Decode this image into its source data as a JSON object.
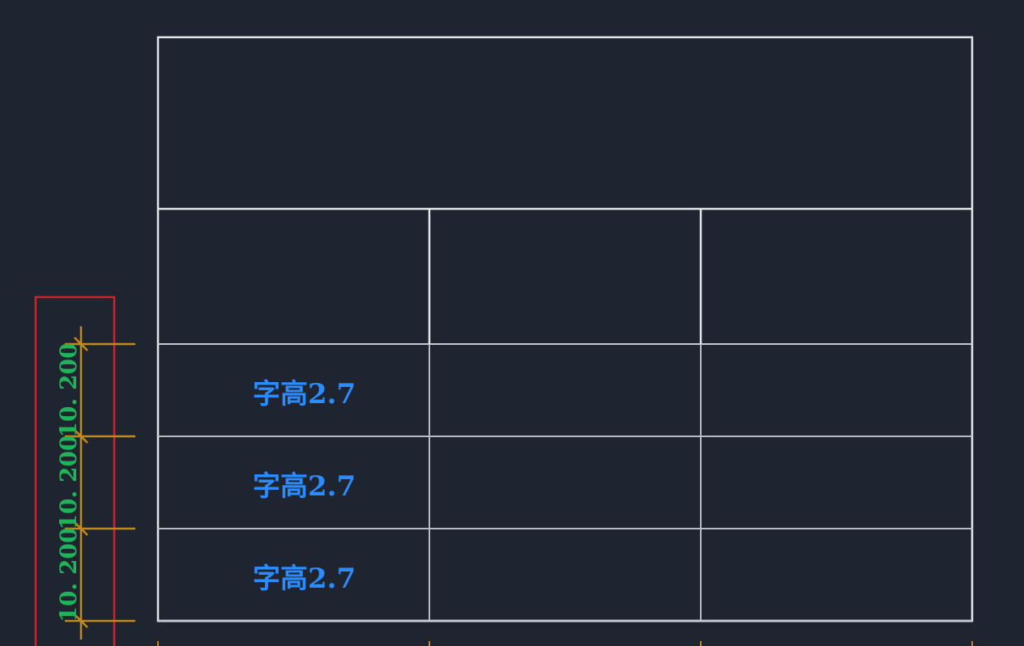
{
  "colors": {
    "background": "#1f2530",
    "table_line": "#e6e8ec",
    "inner_line": "#b8bcc4",
    "cell_text": "#2a8cff",
    "dimension_line": "#c08a1e",
    "dimension_text": "#1fb35a",
    "highlight_box": "#d0232a"
  },
  "table": {
    "rows": [
      {
        "cells": [
          "字高2.7",
          "",
          ""
        ]
      },
      {
        "cells": [
          "字高2.7",
          "",
          ""
        ]
      },
      {
        "cells": [
          "字高2.7",
          "",
          ""
        ]
      }
    ]
  },
  "dimensions": [
    "10. 200",
    "10. 200",
    "10. 200"
  ]
}
